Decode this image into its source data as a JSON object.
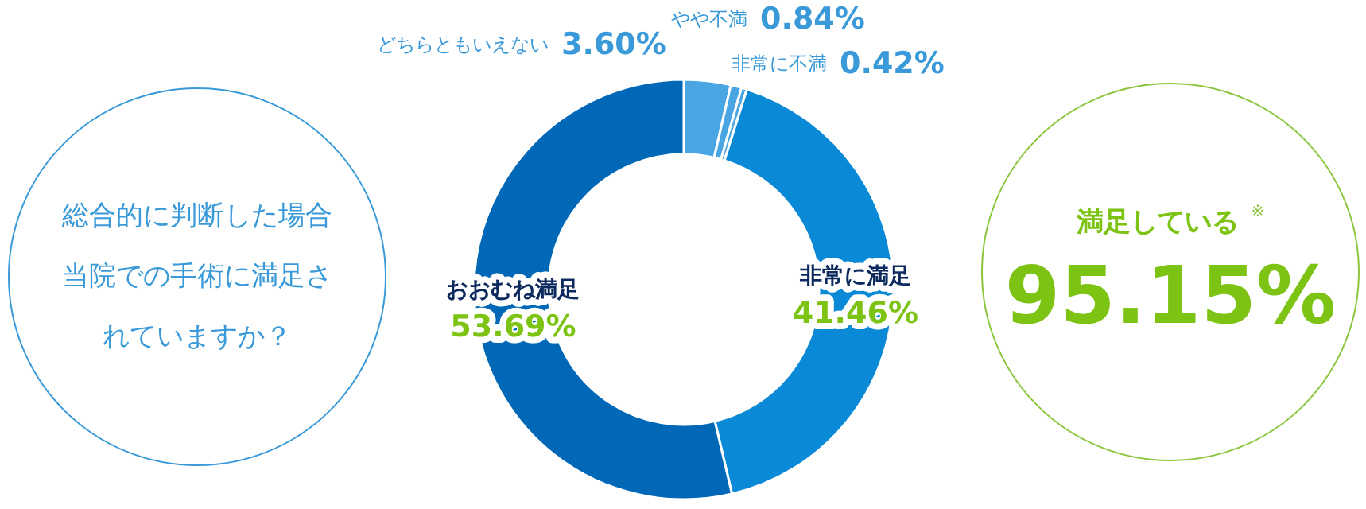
{
  "chart_data": {
    "type": "donut",
    "title": "総合的に判断した場合当院での手術に満足されていますか？",
    "categories": [
      "どちらともいえない",
      "やや不満",
      "非常に不満",
      "非常に満足",
      "おおむね満足"
    ],
    "values": [
      3.6,
      0.84,
      0.42,
      41.46,
      53.69
    ],
    "value_labels": [
      "3.60%",
      "0.84%",
      "0.42%",
      "41.46%",
      "53.69%"
    ],
    "colors": [
      "#4aa6e2",
      "#4aa6e2",
      "#4aa6e2",
      "#0a8ad6",
      "#0068b7"
    ],
    "annotations": [
      "満足している",
      "※",
      "95.15%"
    ]
  }
}
